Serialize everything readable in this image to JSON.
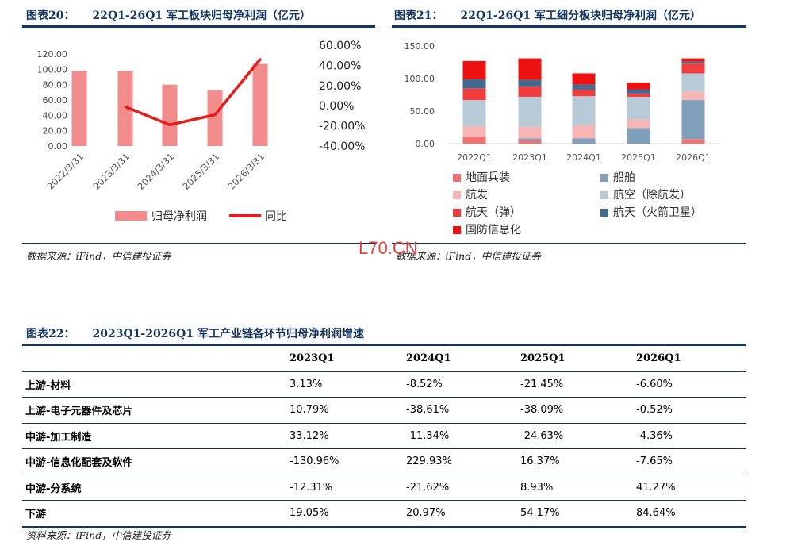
{
  "figure20": {
    "title_num": "图表20：",
    "title": "22Q1-26Q1 军工板块归母净利润（亿元）",
    "source": "数据来源：iFind，中信建投证券"
  },
  "figure21": {
    "title_num": "图表21：",
    "title": "22Q1-26Q1 军工细分板块归母净利润（亿元）",
    "source": "数据来源：iFind，中信建投证券"
  },
  "figure22": {
    "title_num": "图表22：",
    "title": "2023Q1-2026Q1 军工产业链各环节归母净利润增速",
    "source": "资料来源：iFind，中信建投证券"
  },
  "watermark": "L70.CN",
  "colors": {
    "title": "#14365e",
    "bar_profit": "#f28c8c",
    "line_yoy": "#e41c1c"
  },
  "chart_data": [
    {
      "type": "bar",
      "categories": [
        "2022/3/31",
        "2023/3/31",
        "2024/3/31",
        "2025/3/31",
        "2026/3/31"
      ],
      "series": [
        {
          "name": "归母净利润",
          "type": "bar",
          "axis": "left",
          "values": [
            98,
            98,
            80,
            73,
            107
          ]
        },
        {
          "name": "同比",
          "type": "line",
          "axis": "right",
          "values": [
            null,
            -1,
            -19,
            -9,
            46
          ],
          "unit": "%"
        }
      ],
      "ylim": [
        0,
        120
      ],
      "yticks": [
        "0.00",
        "20.00",
        "40.00",
        "60.00",
        "80.00",
        "100.00",
        "120.00"
      ],
      "y2lim": [
        -40,
        60
      ],
      "y2ticks": [
        "-40.00%",
        "-20.00%",
        "0.00%",
        "20.00%",
        "40.00%",
        "60.00%"
      ],
      "legend": "bottom",
      "grid": false
    },
    {
      "type": "bar",
      "stacked": true,
      "categories": [
        "2022Q1",
        "2023Q1",
        "2024Q1",
        "2025Q1",
        "2026Q1"
      ],
      "series": [
        {
          "name": "地面兵装",
          "color": "#ef7373",
          "values": [
            11,
            5,
            0,
            0,
            7
          ]
        },
        {
          "name": "船舶",
          "color": "#7f9fbb",
          "values": [
            0,
            3,
            8,
            24,
            60
          ]
        },
        {
          "name": "航发",
          "color": "#f7b4b4",
          "values": [
            16,
            18,
            20,
            13,
            13
          ]
        },
        {
          "name": "航空（除航发）",
          "color": "#b8c9d8",
          "values": [
            40,
            46,
            45,
            35,
            28
          ]
        },
        {
          "name": "航天（弹）",
          "color": "#f03c3c",
          "values": [
            18,
            16,
            10,
            5,
            15
          ]
        },
        {
          "name": "航天（火箭卫星）",
          "color": "#3f6b92",
          "values": [
            14,
            10,
            8,
            6,
            3
          ]
        },
        {
          "name": "国防信息化",
          "color": "#ee1111",
          "values": [
            28,
            33,
            17,
            11,
            5
          ]
        }
      ],
      "ylim": [
        0,
        150
      ],
      "yticks": [
        "0.00",
        "50.00",
        "100.00",
        "150.00"
      ],
      "legend": "bottom",
      "grid": false
    }
  ],
  "table": {
    "headers": [
      "",
      "2023Q1",
      "2024Q1",
      "2025Q1",
      "2026Q1"
    ],
    "rows": [
      [
        "上游-材料",
        "3.13%",
        "-8.52%",
        "-21.45%",
        "-6.60%"
      ],
      [
        "上游-电子元器件及芯片",
        "10.79%",
        "-38.61%",
        "-38.09%",
        "-0.52%"
      ],
      [
        "中游-加工制造",
        "33.12%",
        "-11.34%",
        "-24.63%",
        "-4.36%"
      ],
      [
        "中游-信息化配套及软件",
        "-130.96%",
        "229.93%",
        "16.37%",
        "-7.65%"
      ],
      [
        "中游-分系统",
        "-12.31%",
        "-21.62%",
        "8.93%",
        "41.27%"
      ],
      [
        "下游",
        "19.05%",
        "20.97%",
        "54.17%",
        "84.64%"
      ]
    ]
  }
}
